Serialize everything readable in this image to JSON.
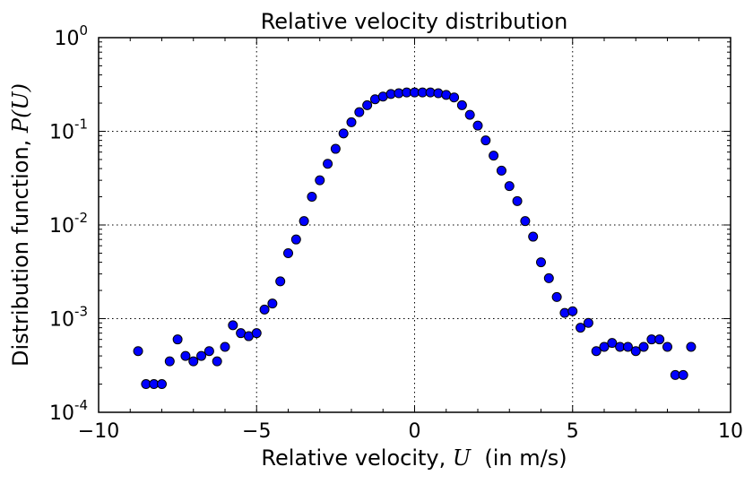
{
  "chart_data": {
    "type": "scatter",
    "title": "Relative velocity distribution",
    "xlabel_prefix": "Relative velocity, ",
    "xlabel_symbol": "U",
    "xlabel_suffix": "  (in m/s)",
    "ylabel_prefix": "Distribution function, ",
    "ylabel_symbol": "P(U)",
    "xlim": [
      -10,
      10
    ],
    "ylim": [
      0.0001,
      1
    ],
    "yscale": "log",
    "grid": true,
    "marker_color": "#0000ff",
    "x_ticks": [
      {
        "value": -10,
        "label": "−10"
      },
      {
        "value": -5,
        "label": "−5"
      },
      {
        "value": 0,
        "label": "0"
      },
      {
        "value": 5,
        "label": "5"
      },
      {
        "value": 10,
        "label": "10"
      }
    ],
    "y_ticks": [
      {
        "value": 1,
        "base": "10",
        "exp": "0"
      },
      {
        "value": 0.1,
        "base": "10",
        "exp": "-1"
      },
      {
        "value": 0.01,
        "base": "10",
        "exp": "-2"
      },
      {
        "value": 0.001,
        "base": "10",
        "exp": "-3"
      },
      {
        "value": 0.0001,
        "base": "10",
        "exp": "-4"
      }
    ],
    "series": [
      {
        "name": "P(U)",
        "x": [
          -8.75,
          -8.5,
          -8.25,
          -8.0,
          -7.75,
          -7.5,
          -7.25,
          -7.0,
          -6.75,
          -6.5,
          -6.25,
          -6.0,
          -5.75,
          -5.5,
          -5.25,
          -5.0,
          -4.75,
          -4.5,
          -4.25,
          -4.0,
          -3.75,
          -3.5,
          -3.25,
          -3.0,
          -2.75,
          -2.5,
          -2.25,
          -2.0,
          -1.75,
          -1.5,
          -1.25,
          -1.0,
          -0.75,
          -0.5,
          -0.25,
          0.0,
          0.25,
          0.5,
          0.75,
          1.0,
          1.25,
          1.5,
          1.75,
          2.0,
          2.25,
          2.5,
          2.75,
          3.0,
          3.25,
          3.5,
          3.75,
          4.0,
          4.25,
          4.5,
          4.75,
          5.0,
          5.25,
          5.5,
          5.75,
          6.0,
          6.25,
          6.5,
          6.75,
          7.0,
          7.25,
          7.5,
          7.75,
          8.0,
          8.25,
          8.5,
          8.75
        ],
        "y": [
          0.00045,
          0.0002,
          0.0002,
          0.0002,
          0.00035,
          0.0006,
          0.0004,
          0.00035,
          0.0004,
          0.00045,
          0.00035,
          0.0005,
          0.00085,
          0.0007,
          0.00065,
          0.0007,
          0.00125,
          0.00145,
          0.0025,
          0.005,
          0.007,
          0.011,
          0.02,
          0.03,
          0.045,
          0.065,
          0.095,
          0.125,
          0.16,
          0.19,
          0.22,
          0.235,
          0.25,
          0.255,
          0.26,
          0.26,
          0.26,
          0.26,
          0.255,
          0.245,
          0.23,
          0.19,
          0.15,
          0.115,
          0.08,
          0.055,
          0.038,
          0.026,
          0.018,
          0.011,
          0.0075,
          0.004,
          0.0027,
          0.0017,
          0.00115,
          0.0012,
          0.0008,
          0.0009,
          0.00045,
          0.0005,
          0.00055,
          0.0005,
          0.0005,
          0.00045,
          0.0005,
          0.0006,
          0.0006,
          0.0005,
          0.00025,
          0.00025,
          0.0005
        ]
      }
    ]
  }
}
